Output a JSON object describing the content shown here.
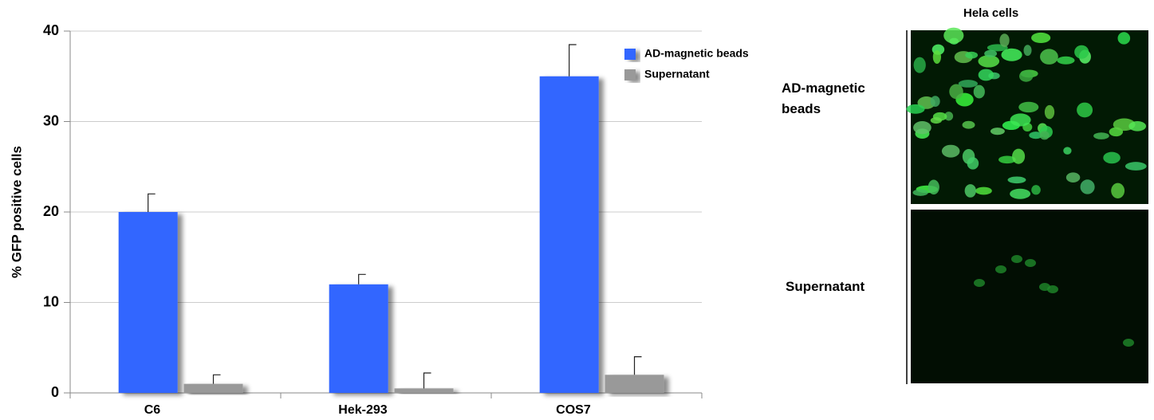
{
  "chart_data": {
    "type": "bar",
    "ylabel": "% GFP positive cells",
    "categories": [
      "C6",
      "Hek-293",
      "COS7"
    ],
    "series": [
      {
        "name": "AD-magnetic beads",
        "color": "#3366ff",
        "values": [
          20,
          12,
          35
        ],
        "errors": [
          2,
          1.1,
          3.5
        ]
      },
      {
        "name": "Supernatant",
        "color": "#999999",
        "values": [
          1,
          0.5,
          2
        ],
        "errors": [
          1,
          1.7,
          2
        ]
      }
    ],
    "ylim": [
      0,
      40
    ],
    "yticks": [
      0,
      10,
      20,
      30,
      40
    ],
    "grid": true,
    "legend": "top-right"
  },
  "panel": {
    "title": "Hela cells",
    "rows": [
      "AD-magnetic beads",
      "Supernatant"
    ]
  }
}
